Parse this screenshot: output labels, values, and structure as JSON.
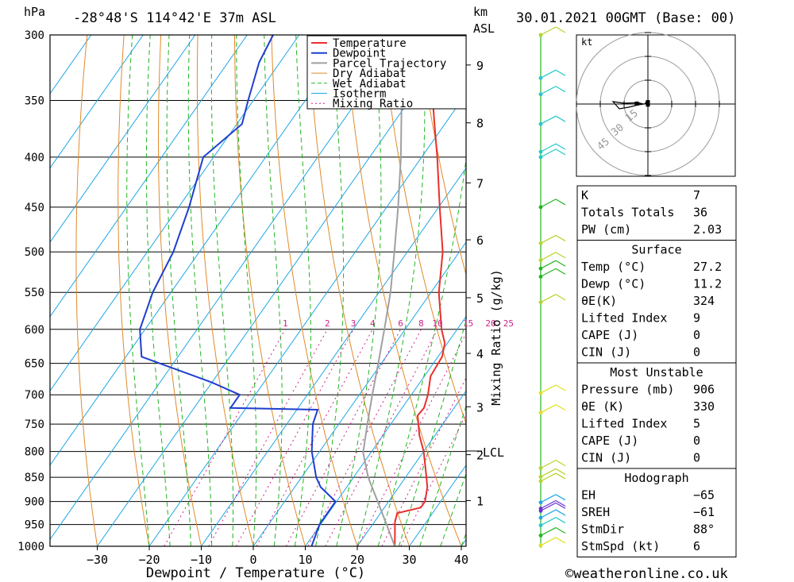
{
  "header": {
    "pressure_unit": "hPa",
    "location": "-28°48'S 114°42'E 37m ASL",
    "km_unit": "km",
    "asl_label": "ASL",
    "datetime": "30.01.2021 00GMT (Base: 00)"
  },
  "footer": {
    "credit": "©weatheronline.co.uk"
  },
  "colors": {
    "temperature": "#e8302c",
    "dewpoint": "#1f3ecf",
    "parcel": "#a0a0a0",
    "dry_adiabat": "#e08a2a",
    "wet_adiabat": "#22b522",
    "isotherm": "#1fa6e6",
    "mixing_ratio": "#d0208a"
  },
  "chart_data": {
    "type": "line",
    "title": "",
    "xlabel": "Dewpoint / Temperature (°C)",
    "ylabel": "",
    "x_ticks": [
      -30,
      -20,
      -10,
      0,
      10,
      20,
      30,
      40
    ],
    "x_tick_labels": [
      "−30",
      "−20",
      "−10",
      "0",
      "10",
      "20",
      "30",
      "40"
    ],
    "y_ticks": [
      300,
      350,
      400,
      450,
      500,
      550,
      600,
      650,
      700,
      750,
      800,
      850,
      900,
      950,
      1000
    ],
    "y_scale": "log",
    "ylim": [
      1000,
      300
    ],
    "xlim": [
      -40,
      40
    ],
    "skew": true,
    "km_ticks": [
      {
        "label": "9",
        "p": 322
      },
      {
        "label": "8",
        "p": 369
      },
      {
        "label": "7",
        "p": 425
      },
      {
        "label": "6",
        "p": 486
      },
      {
        "label": "5",
        "p": 557
      },
      {
        "label": "4",
        "p": 635
      },
      {
        "label": "3",
        "p": 720
      },
      {
        "label": "2",
        "p": 806
      },
      {
        "label": "1",
        "p": 898
      }
    ],
    "lcl": {
      "label": "LCL",
      "p": 802
    },
    "mixing_ratio_axis_label": "Mixing Ratio (g/kg)",
    "mixing_ratio_labels": [
      "1",
      "2",
      "3",
      "4",
      "6",
      "8",
      "10",
      "15",
      "20",
      "25"
    ],
    "mixing_ratio_values": [
      1,
      2,
      3,
      4,
      6,
      8,
      10,
      15,
      20,
      25
    ],
    "legend_position": "top-right",
    "legend": [
      "Temperature",
      "Dewpoint",
      "Parcel Trajectory",
      "Dry Adiabat",
      "Wet Adiabat",
      "Isotherm",
      "Mixing Ratio"
    ],
    "series": [
      {
        "name": "Temperature",
        "points": [
          {
            "p": 1000,
            "t": 27.2
          },
          {
            "p": 970,
            "t": 25.5
          },
          {
            "p": 945,
            "t": 24.0
          },
          {
            "p": 925,
            "t": 23.2
          },
          {
            "p": 913,
            "t": 27.0
          },
          {
            "p": 900,
            "t": 27.0
          },
          {
            "p": 870,
            "t": 25.5
          },
          {
            "p": 850,
            "t": 24.0
          },
          {
            "p": 800,
            "t": 20.0
          },
          {
            "p": 770,
            "t": 17.0
          },
          {
            "p": 735,
            "t": 14.0
          },
          {
            "p": 722,
            "t": 14.2
          },
          {
            "p": 700,
            "t": 13.2
          },
          {
            "p": 670,
            "t": 11.2
          },
          {
            "p": 640,
            "t": 10.8
          },
          {
            "p": 620,
            "t": 9.5
          },
          {
            "p": 600,
            "t": 7.0
          },
          {
            "p": 550,
            "t": 1.5
          },
          {
            "p": 500,
            "t": -3.2
          },
          {
            "p": 450,
            "t": -9.8
          },
          {
            "p": 400,
            "t": -17.0
          },
          {
            "p": 370,
            "t": -22.0
          },
          {
            "p": 350,
            "t": -25.5
          },
          {
            "p": 325,
            "t": -30.0
          },
          {
            "p": 300,
            "t": -36.5
          }
        ]
      },
      {
        "name": "Dewpoint",
        "points": [
          {
            "p": 1000,
            "t": 11.2
          },
          {
            "p": 950,
            "t": 9.8
          },
          {
            "p": 900,
            "t": 9.8
          },
          {
            "p": 870,
            "t": 5.0
          },
          {
            "p": 850,
            "t": 2.8
          },
          {
            "p": 800,
            "t": -1.5
          },
          {
            "p": 750,
            "t": -5.0
          },
          {
            "p": 725,
            "t": -6.0
          },
          {
            "p": 722,
            "t": -23.0
          },
          {
            "p": 700,
            "t": -23.0
          },
          {
            "p": 680,
            "t": -30.0
          },
          {
            "p": 640,
            "t": -47.0
          },
          {
            "p": 600,
            "t": -51.0
          },
          {
            "p": 550,
            "t": -53.5
          },
          {
            "p": 500,
            "t": -55.0
          },
          {
            "p": 450,
            "t": -58.0
          },
          {
            "p": 400,
            "t": -62.0
          },
          {
            "p": 370,
            "t": -59.0
          },
          {
            "p": 350,
            "t": -61.0
          },
          {
            "p": 320,
            "t": -64.0
          },
          {
            "p": 300,
            "t": -65.0
          }
        ]
      },
      {
        "name": "Parcel Trajectory",
        "points": [
          {
            "p": 1000,
            "t": 27.2
          },
          {
            "p": 950,
            "t": 22.7
          },
          {
            "p": 900,
            "t": 17.9
          },
          {
            "p": 850,
            "t": 12.8
          },
          {
            "p": 802,
            "t": 8.5
          },
          {
            "p": 750,
            "t": 5.5
          },
          {
            "p": 700,
            "t": 2.5
          },
          {
            "p": 650,
            "t": -0.6
          },
          {
            "p": 600,
            "t": -4.0
          },
          {
            "p": 550,
            "t": -7.8
          },
          {
            "p": 500,
            "t": -12.5
          },
          {
            "p": 450,
            "t": -17.8
          },
          {
            "p": 400,
            "t": -24.0
          },
          {
            "p": 350,
            "t": -31.5
          },
          {
            "p": 300,
            "t": -40.0
          }
        ]
      }
    ]
  },
  "hodograph": {
    "unit_label": "kt",
    "ring_labels": [
      "45",
      "30",
      "15"
    ],
    "trace": [
      {
        "u": -0.8,
        "v": 0.1
      },
      {
        "u": -1.5,
        "v": 0.8
      },
      {
        "u": -1.0,
        "v": 1.6
      },
      {
        "u": -1.4,
        "v": 0.2
      },
      {
        "u": -3.0,
        "v": 0.0
      },
      {
        "u": -6.0,
        "v": 0.8
      },
      {
        "u": -15.0,
        "v": 0.5
      },
      {
        "u": -22.0,
        "v": 1.5
      },
      {
        "u": -18.0,
        "v": -3.0
      },
      {
        "u": -12.0,
        "v": -2.0
      },
      {
        "u": -6.0,
        "v": -0.5
      },
      {
        "u": -0.5,
        "v": 0.3
      }
    ],
    "markers": [
      {
        "u": -7.0,
        "v": 0.3
      },
      {
        "u": 0.0,
        "v": 1.2
      },
      {
        "u": 0.0,
        "v": -0.4
      }
    ]
  },
  "wind_profile": {
    "levels": [
      {
        "p": 300,
        "color": "#b4d42a"
      },
      {
        "p": 332,
        "color": "#22c8c8"
      },
      {
        "p": 345,
        "color": "#22c8c8"
      },
      {
        "p": 370,
        "color": "#22c8c8"
      },
      {
        "p": 395,
        "color": "#22c8c8"
      },
      {
        "p": 400,
        "color": "#22c8c8"
      },
      {
        "p": 450,
        "color": "#22b522"
      },
      {
        "p": 490,
        "color": "#b4d42a"
      },
      {
        "p": 510,
        "color": "#b4d42a"
      },
      {
        "p": 520,
        "color": "#22b522"
      },
      {
        "p": 530,
        "color": "#22b522"
      },
      {
        "p": 563,
        "color": "#b4d42a"
      },
      {
        "p": 697,
        "color": "#e0e020"
      },
      {
        "p": 730,
        "color": "#e0e020"
      },
      {
        "p": 832,
        "color": "#b4d42a"
      },
      {
        "p": 849,
        "color": "#b4d42a"
      },
      {
        "p": 858,
        "color": "#b4d42a"
      },
      {
        "p": 902,
        "color": "#1fa6e6"
      },
      {
        "p": 915,
        "color": "#6a30d0"
      },
      {
        "p": 920,
        "color": "#6a30d0"
      },
      {
        "p": 935,
        "color": "#1fa6e6"
      },
      {
        "p": 952,
        "color": "#22c8c8"
      },
      {
        "p": 975,
        "color": "#22b522"
      },
      {
        "p": 998,
        "color": "#e0e020"
      }
    ]
  },
  "indices": {
    "top": [
      {
        "label": "K",
        "value": "7"
      },
      {
        "label": "Totals Totals",
        "value": "36"
      },
      {
        "label": "PW (cm)",
        "value": "2.03"
      }
    ],
    "surface": {
      "title": "Surface",
      "rows": [
        {
          "label": "Temp (°C)",
          "value": "27.2"
        },
        {
          "label": "Dewp (°C)",
          "value": "11.2"
        },
        {
          "label": "θE(K)",
          "value": "324"
        },
        {
          "label": "Lifted Index",
          "value": "9"
        },
        {
          "label": "CAPE (J)",
          "value": "0"
        },
        {
          "label": "CIN (J)",
          "value": "0"
        }
      ]
    },
    "most_unstable": {
      "title": "Most Unstable",
      "rows": [
        {
          "label": "Pressure (mb)",
          "value": "906"
        },
        {
          "label": "θE (K)",
          "value": "330"
        },
        {
          "label": "Lifted Index",
          "value": "5"
        },
        {
          "label": "CAPE (J)",
          "value": "0"
        },
        {
          "label": "CIN (J)",
          "value": "0"
        }
      ]
    },
    "hodograph": {
      "title": "Hodograph",
      "rows": [
        {
          "label": "EH",
          "value": "−65"
        },
        {
          "label": "SREH",
          "value": "−61"
        },
        {
          "label": "StmDir",
          "value": "88°"
        },
        {
          "label": "StmSpd (kt)",
          "value": "6"
        }
      ]
    }
  }
}
